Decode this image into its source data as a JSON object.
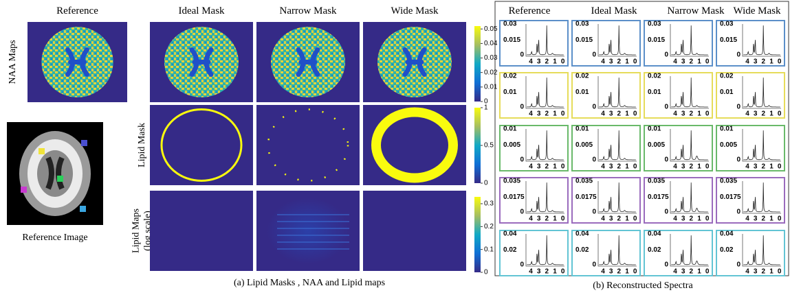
{
  "panel_a": {
    "column_headers": [
      "Reference",
      "Ideal Mask",
      "Narrow Mask",
      "Wide Mask"
    ],
    "row_labels": [
      [
        "NAA  Maps"
      ],
      [
        "Lipid Mask"
      ],
      [
        "Lipid Maps",
        "(log scale)"
      ]
    ],
    "reference_image_label": "Reference Image",
    "colorbars": [
      {
        "lim": [
          0,
          0.052
        ],
        "ticks": [
          0.05,
          0.04,
          0.03,
          0.02,
          0.01,
          0
        ]
      },
      {
        "lim": [
          0,
          1
        ],
        "ticks": [
          1,
          0.5,
          0
        ]
      },
      {
        "lim": [
          0,
          0.33
        ],
        "ticks": [
          0.3,
          0.2,
          0.1,
          0
        ]
      }
    ],
    "caption": "(a)  Lipid Masks , NAA and Lipid maps"
  },
  "panel_b": {
    "column_headers": [
      "Reference",
      "Ideal Mask",
      "Narrow Mask",
      "Wide Mask"
    ],
    "x_ticks": [
      4,
      3,
      2,
      1,
      0
    ],
    "rows": [
      {
        "color": "#5b8fc9",
        "y_ticks": [
          0.03,
          0.015,
          0
        ]
      },
      {
        "color": "#e6dc5a",
        "y_ticks": [
          0.02,
          0.01,
          0
        ]
      },
      {
        "color": "#69b96a",
        "y_ticks": [
          0.01,
          0.005,
          0
        ]
      },
      {
        "color": "#9a6bbd",
        "y_ticks": [
          0.035,
          0.0175,
          0
        ]
      },
      {
        "color": "#62c4d4",
        "y_ticks": [
          0.04,
          0.02,
          0
        ]
      }
    ],
    "caption": "(b)  Reconstructed Spectra"
  }
}
